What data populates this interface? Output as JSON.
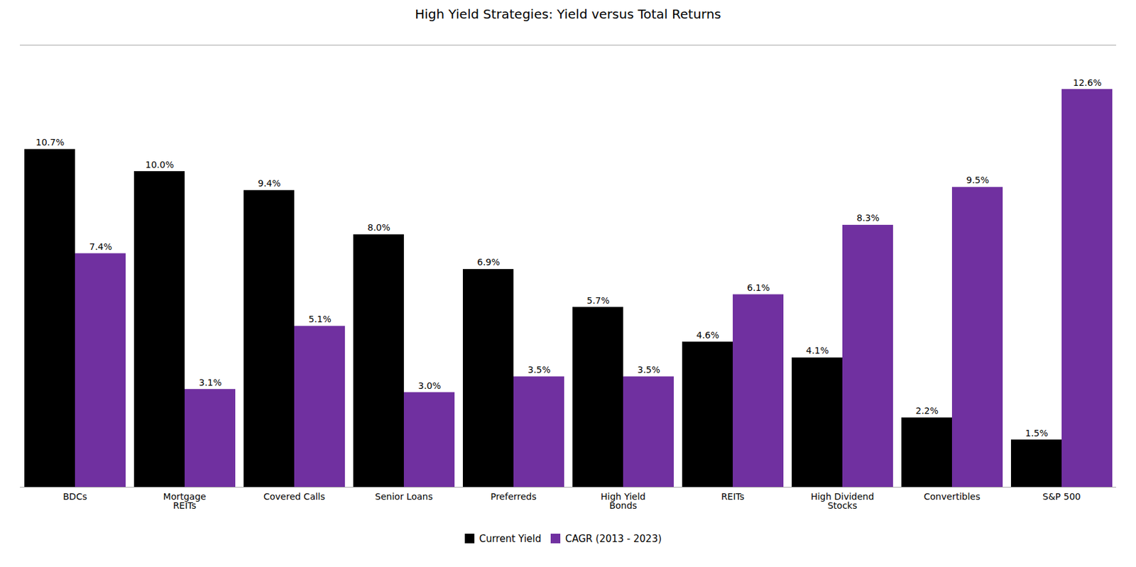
{
  "chart_data": {
    "type": "bar",
    "title": "High Yield Strategies: Yield versus Total Returns",
    "categories": [
      "BDCs",
      "Mortgage\nREITs",
      "Covered Calls",
      "Senior Loans",
      "Preferreds",
      "High Yield\nBonds",
      "REITs",
      "High Dividend\nStocks",
      "Convertibles",
      "S&P 500"
    ],
    "series": [
      {
        "name": "Current Yield",
        "color": "#000000",
        "values": [
          10.7,
          10.0,
          9.4,
          8.0,
          6.9,
          5.7,
          4.6,
          4.1,
          2.2,
          1.5
        ],
        "value_labels": [
          "10.7%",
          "10.0%",
          "9.4%",
          "8.0%",
          "6.9%",
          "5.7%",
          "4.6%",
          "4.1%",
          "2.2%",
          "1.5%"
        ]
      },
      {
        "name": "CAGR (2013 - 2023)",
        "color": "#7030a0",
        "values": [
          7.4,
          3.1,
          5.1,
          3.0,
          3.5,
          3.5,
          6.1,
          8.3,
          9.5,
          12.6
        ],
        "value_labels": [
          "7.4%",
          "3.1%",
          "5.1%",
          "3.0%",
          "3.5%",
          "3.5%",
          "6.1%",
          "8.3%",
          "9.5%",
          "12.6%"
        ]
      }
    ],
    "ylim": [
      0,
      14
    ],
    "data_labels": true,
    "tick_labels": "x",
    "grid": false,
    "legend": "bottom"
  }
}
